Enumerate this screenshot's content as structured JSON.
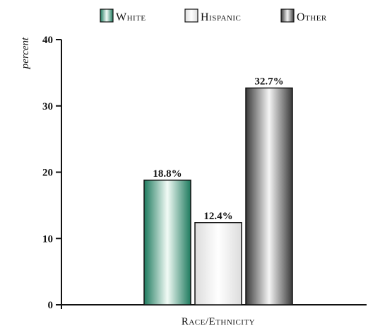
{
  "chart_data": {
    "type": "bar",
    "title": "",
    "ylabel": "percent",
    "xlabel": "Race/Ethnicity",
    "ylim": [
      0,
      40
    ],
    "yticks": [
      0,
      10,
      20,
      30,
      40
    ],
    "categories": [
      "White",
      "Hispanic",
      "Other"
    ],
    "values": [
      18.8,
      12.4,
      32.7
    ],
    "value_labels": [
      "18.8%",
      "12.4%",
      "32.7%"
    ],
    "grid": false,
    "legend_position": "top",
    "colors": {
      "White": "#1a8a6a",
      "Hispanic": "#e8e8e8",
      "Other": "#555555"
    }
  }
}
